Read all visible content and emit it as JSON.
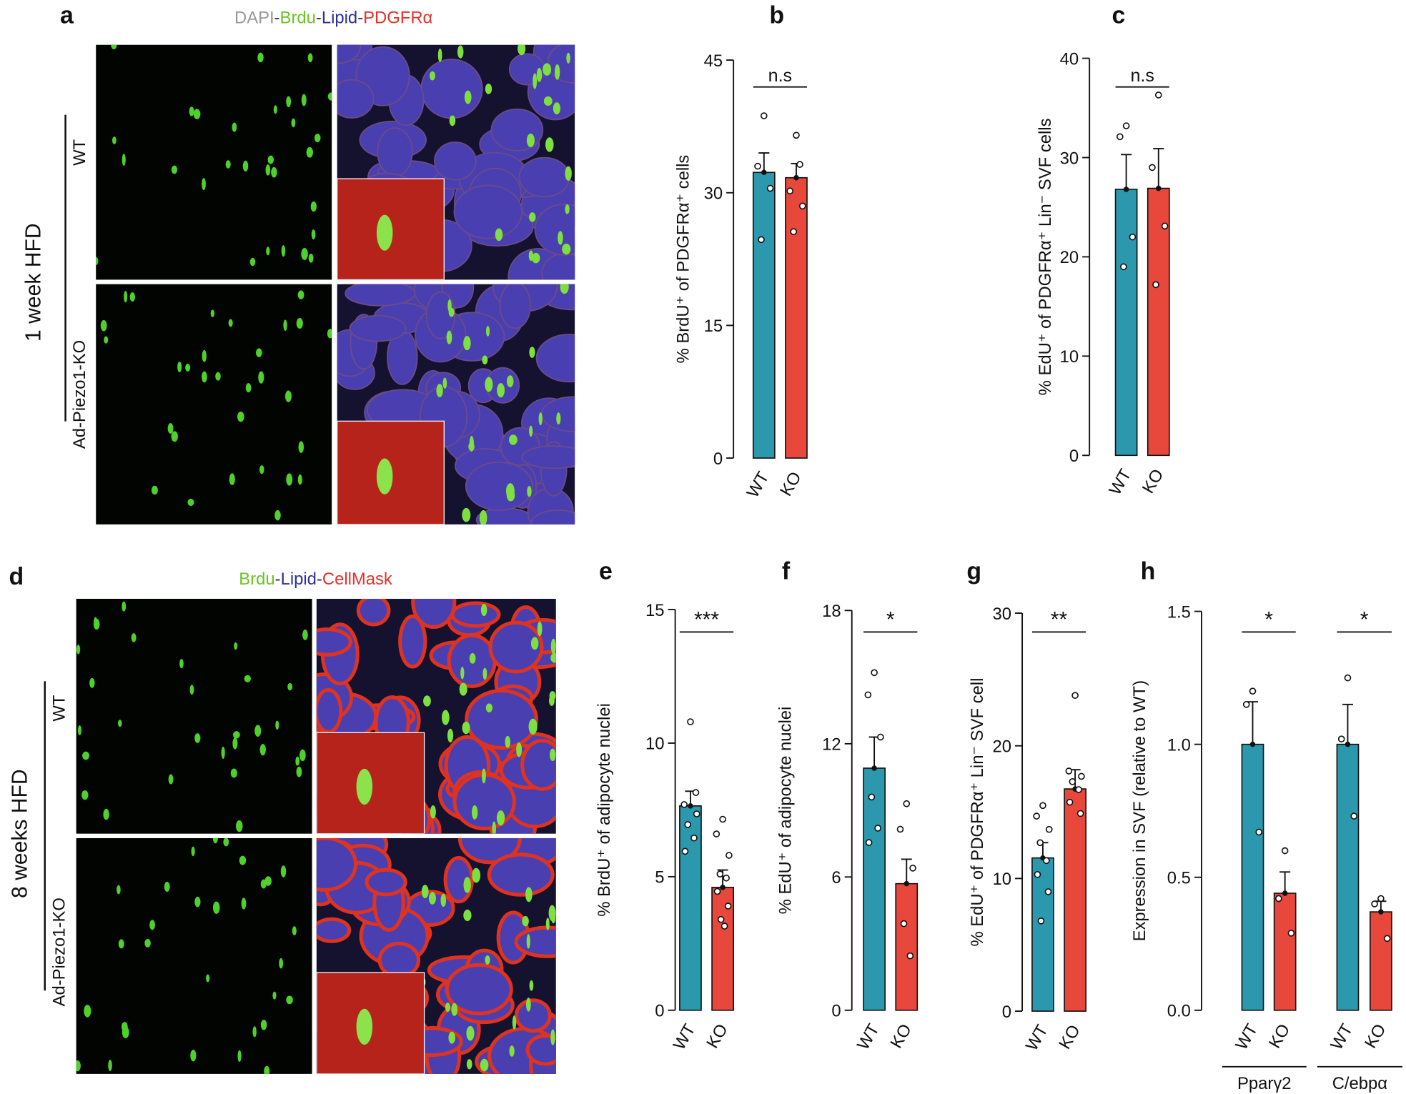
{
  "chart_data": [
    {
      "type": "bar",
      "panel_label": "b",
      "y_label": "% BrdU⁺ of PDGFRα⁺ cells",
      "categories": [
        "WT",
        "KO"
      ],
      "values": [
        32.3,
        31.7
      ],
      "errors": [
        2.2,
        1.6
      ],
      "colors": [
        "#2b98ad",
        "#e8473b"
      ],
      "points": [
        [
          38.7,
          33.0,
          30.5,
          24.7
        ],
        [
          36.5,
          30.2,
          28.5,
          25.6,
          33.2
        ]
      ],
      "ylim": [
        0,
        45
      ],
      "yticks": [
        0,
        15,
        30,
        45
      ],
      "annotations": [
        "n.s"
      ]
    },
    {
      "type": "bar",
      "panel_label": "c",
      "y_label": "% EdU⁺ of PDGFRα⁺ Lin⁻ SVF cells",
      "categories": [
        "WT",
        "KO"
      ],
      "values": [
        26.8,
        26.9
      ],
      "errors": [
        3.5,
        4.0
      ],
      "colors": [
        "#2b98ad",
        "#e8473b"
      ],
      "points": [
        [
          33.2,
          32.1,
          22.0,
          19.0
        ],
        [
          36.3,
          29.0,
          23.1,
          17.2
        ]
      ],
      "ylim": [
        0,
        40
      ],
      "yticks": [
        0,
        10,
        20,
        30,
        40
      ],
      "annotations": [
        "n.s"
      ]
    },
    {
      "type": "bar",
      "panel_label": "e",
      "y_label": "% BrdU⁺ of adipocyte nuclei",
      "categories": [
        "WT",
        "KO"
      ],
      "values": [
        7.65,
        4.6
      ],
      "errors": [
        0.55,
        0.65
      ],
      "colors": [
        "#2b98ad",
        "#e8473b"
      ],
      "points": [
        [
          10.8,
          7.7,
          7.35,
          6.95,
          6.45,
          5.95,
          8.15
        ],
        [
          7.15,
          6.6,
          5.8,
          5.1,
          4.95,
          4.45,
          3.9,
          3.4,
          3.15
        ]
      ],
      "ylim": [
        0,
        15
      ],
      "yticks": [
        0,
        5,
        10,
        15
      ],
      "annotations": [
        "***"
      ]
    },
    {
      "type": "bar",
      "panel_label": "f",
      "y_label": "% EdU⁺ of adipocyte nuclei",
      "categories": [
        "WT",
        "KO"
      ],
      "values": [
        10.9,
        5.7
      ],
      "errors": [
        1.4,
        1.1
      ],
      "colors": [
        "#2b98ad",
        "#e8473b"
      ],
      "points": [
        [
          15.2,
          14.2,
          12.3,
          9.6,
          8.2,
          7.55
        ],
        [
          9.3,
          8.15,
          6.4,
          3.9,
          2.45
        ]
      ],
      "ylim": [
        0,
        18
      ],
      "yticks": [
        0,
        6,
        12,
        18
      ],
      "annotations": [
        "*"
      ]
    },
    {
      "type": "bar",
      "panel_label": "g",
      "y_label": "% EdU⁺ of PDGFRα⁺ Lin⁻ SVF cell",
      "categories": [
        "WT",
        "KO"
      ],
      "values": [
        11.55,
        16.75
      ],
      "errors": [
        1.15,
        1.45
      ],
      "colors": [
        "#2b98ad",
        "#e8473b"
      ],
      "points": [
        [
          15.5,
          14.7,
          13.7,
          12.7,
          11.35,
          10.3,
          9.0,
          6.8
        ],
        [
          23.8,
          18.1,
          17.7,
          17.3,
          16.7,
          15.75,
          14.9
        ]
      ],
      "ylim": [
        0,
        30
      ],
      "yticks": [
        0,
        10,
        20,
        30
      ],
      "annotations": [
        "**"
      ]
    },
    {
      "type": "bar",
      "panel_label": "h",
      "y_label": "Expression in SVF (relative to WT)",
      "categories": [
        "WT",
        "KO",
        "WT",
        "KO"
      ],
      "groups": [
        "Pparγ2",
        "C/ebpα"
      ],
      "values": [
        1.0,
        0.44,
        1.0,
        0.37
      ],
      "errors": [
        0.16,
        0.08,
        0.15,
        0.04
      ],
      "colors": [
        "#2b98ad",
        "#e8473b",
        "#2b98ad",
        "#e8473b"
      ],
      "points": [
        [
          1.2,
          1.15,
          0.67
        ],
        [
          0.6,
          0.42,
          0.29
        ],
        [
          1.25,
          1.02,
          0.73
        ],
        [
          0.42,
          0.4,
          0.27
        ]
      ],
      "ylim": [
        0,
        1.5
      ],
      "yticks": [
        {
          "value": 0,
          "label": "0.0"
        },
        {
          "value": 0.5,
          "label": "0.5"
        },
        {
          "value": 1,
          "label": "1.0"
        },
        {
          "value": 1.5,
          "label": "1.5"
        }
      ],
      "annotations": [
        "*",
        "*"
      ]
    }
  ],
  "images": [
    {
      "panel_label": "a",
      "stain": [
        "DAPI",
        "-",
        "Brdu",
        "-",
        "Lipid",
        "-",
        "PDGFRα"
      ],
      "stain_colors": [
        "#999999",
        "#333333",
        "#6cc224",
        "#333333",
        "#2b2f9c",
        "#333333",
        "#e8302a"
      ],
      "condition": "1 week HFD",
      "rows": [
        "WT",
        "Ad-Piezo1-KO"
      ]
    },
    {
      "panel_label": "d",
      "stain": [
        "Brdu",
        "-",
        "Lipid",
        "-",
        "CellMask"
      ],
      "stain_colors": [
        "#6cc224",
        "#333333",
        "#2b2f9c",
        "#333333",
        "#e8302a"
      ],
      "condition": "8 weeks HFD",
      "rows": [
        "WT",
        "Ad-Piezo1-KO"
      ]
    }
  ]
}
